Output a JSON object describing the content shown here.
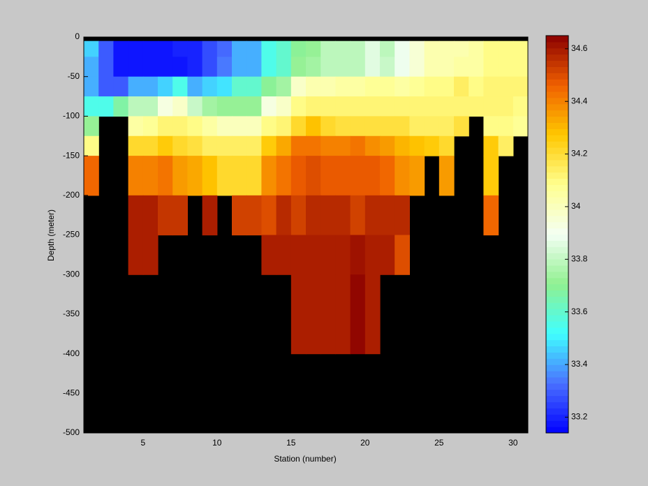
{
  "chart_data": {
    "type": "heatmap",
    "xlabel": "Station (number)",
    "ylabel": "Depth (meter)",
    "x_edges": [
      1,
      2,
      3,
      4,
      5,
      6,
      7,
      8,
      9,
      10,
      11,
      12,
      13,
      14,
      15,
      16,
      17,
      18,
      19,
      20,
      21,
      22,
      23,
      24,
      25,
      26,
      27,
      28,
      29,
      30,
      31
    ],
    "y_edges": [
      -5,
      -25,
      -50,
      -75,
      -100,
      -125,
      -150,
      -200,
      -250,
      -300,
      -400
    ],
    "values": [
      [
        33.45,
        33.3,
        33.17,
        33.17,
        33.17,
        33.17,
        33.2,
        33.2,
        33.28,
        33.32,
        33.42,
        33.42,
        33.55,
        33.6,
        33.7,
        33.72,
        33.8,
        33.8,
        33.8,
        33.85,
        33.8,
        33.88,
        33.95,
        34.02,
        34.02,
        34.03,
        34.05,
        34.1,
        34.1,
        34.1
      ],
      [
        33.4,
        33.3,
        33.17,
        33.17,
        33.17,
        33.17,
        33.17,
        33.2,
        33.28,
        33.35,
        33.42,
        33.42,
        33.55,
        33.6,
        33.72,
        33.75,
        33.8,
        33.8,
        33.8,
        33.85,
        33.82,
        33.88,
        33.95,
        34.03,
        34.03,
        34.05,
        34.05,
        34.1,
        34.1,
        34.1
      ],
      [
        33.42,
        33.3,
        33.3,
        33.4,
        33.4,
        33.45,
        33.55,
        33.42,
        33.45,
        33.48,
        33.6,
        33.6,
        33.7,
        33.75,
        33.97,
        34.03,
        34.03,
        34.05,
        34.06,
        34.07,
        34.07,
        34.06,
        34.08,
        34.1,
        34.1,
        34.15,
        34.1,
        34.12,
        34.12,
        34.12
      ],
      [
        33.55,
        33.55,
        33.68,
        33.8,
        33.8,
        33.92,
        33.98,
        33.82,
        33.75,
        33.72,
        33.72,
        33.72,
        33.92,
        33.98,
        34.1,
        34.12,
        34.12,
        34.12,
        34.12,
        34.12,
        34.12,
        34.12,
        34.12,
        34.12,
        34.12,
        34.12,
        34.12,
        34.13,
        34.12,
        34.1
      ],
      [
        33.72,
        null,
        null,
        34.05,
        34.07,
        34.12,
        34.12,
        34.1,
        34.05,
        34.0,
        34.0,
        34.0,
        34.1,
        34.13,
        34.22,
        34.28,
        34.22,
        34.18,
        34.18,
        34.18,
        34.18,
        34.18,
        34.15,
        34.15,
        34.15,
        34.2,
        null,
        34.1,
        34.1,
        34.08
      ],
      [
        34.1,
        null,
        null,
        34.22,
        34.22,
        34.25,
        34.22,
        34.18,
        34.15,
        34.15,
        34.15,
        34.15,
        34.25,
        34.33,
        34.42,
        34.42,
        34.4,
        34.4,
        34.42,
        34.38,
        34.35,
        34.3,
        34.28,
        34.25,
        34.22,
        null,
        null,
        34.25,
        34.15,
        null
      ],
      [
        34.45,
        null,
        null,
        34.4,
        34.4,
        34.42,
        34.35,
        34.32,
        34.28,
        34.22,
        34.22,
        34.22,
        34.38,
        34.42,
        34.48,
        34.5,
        34.47,
        34.47,
        34.47,
        34.47,
        34.45,
        34.38,
        34.35,
        null,
        34.35,
        null,
        null,
        34.25,
        null,
        null
      ],
      [
        null,
        null,
        null,
        34.58,
        34.58,
        34.55,
        34.55,
        null,
        34.58,
        null,
        34.53,
        34.53,
        34.5,
        34.56,
        34.53,
        34.56,
        34.56,
        34.56,
        34.53,
        34.56,
        34.56,
        34.56,
        null,
        null,
        null,
        null,
        null,
        34.45,
        null,
        null
      ],
      [
        null,
        null,
        null,
        34.6,
        34.6,
        null,
        null,
        null,
        null,
        null,
        null,
        null,
        34.58,
        34.58,
        34.6,
        34.6,
        34.6,
        34.58,
        34.62,
        34.58,
        34.58,
        34.5,
        null,
        null,
        null,
        null,
        null,
        null,
        null,
        null
      ],
      [
        null,
        null,
        null,
        null,
        null,
        null,
        null,
        null,
        null,
        null,
        null,
        null,
        null,
        null,
        34.6,
        34.6,
        34.6,
        34.58,
        34.63,
        34.58,
        null,
        null,
        null,
        null,
        null,
        null,
        null,
        null,
        null,
        null
      ]
    ],
    "xlim": [
      1,
      31
    ],
    "ylim": [
      -500,
      0
    ],
    "xticks": [
      5,
      10,
      15,
      20,
      25,
      30
    ],
    "yticks": [
      0,
      -50,
      -100,
      -150,
      -200,
      -250,
      -300,
      -350,
      -400,
      -450,
      -500
    ],
    "background": "#000000",
    "colorbar": {
      "lim": [
        33.14,
        34.65
      ],
      "ticks": [
        33.2,
        33.4,
        33.6,
        33.8,
        34,
        34.2,
        34.4,
        34.6
      ],
      "levels": 64
    },
    "colormap": [
      "#0000ff",
      "#4a70ff",
      "#40ffff",
      "#90f090",
      "#f4fff4",
      "#ffff90",
      "#ffc800",
      "#f06000",
      "#8b0000"
    ]
  }
}
